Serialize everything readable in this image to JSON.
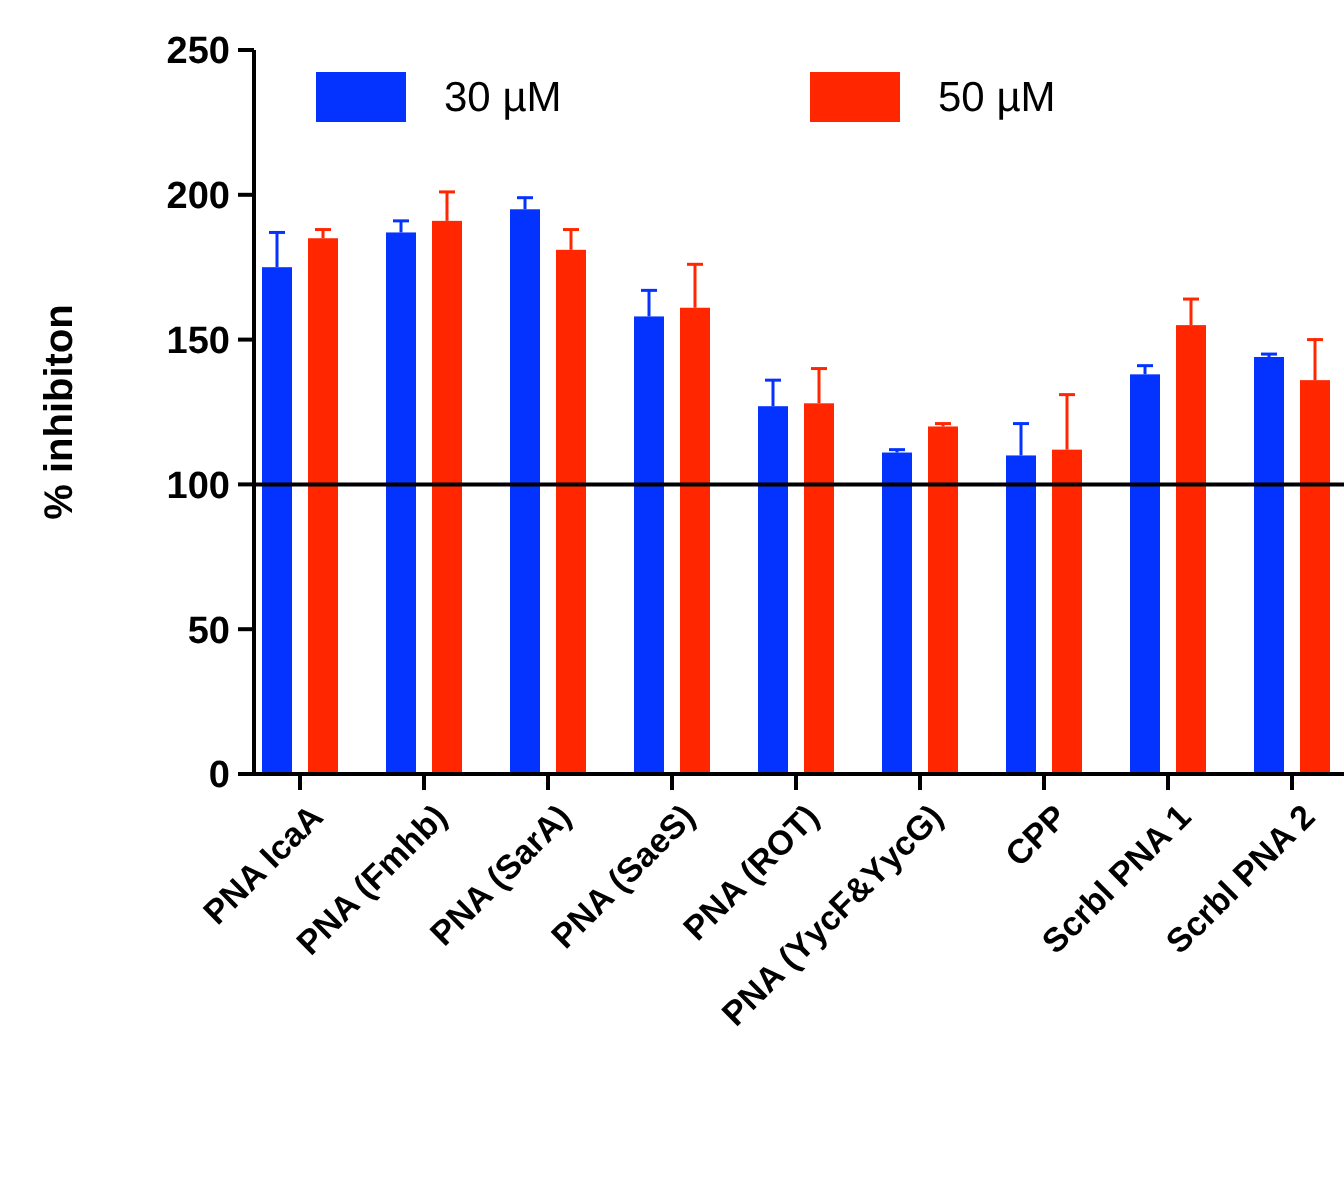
{
  "chart_data": {
    "type": "bar",
    "ylabel": "% inhibiton",
    "categories": [
      "PNA IcaA",
      "PNA (Fmhb)",
      "PNA (SarA)",
      "PNA (SaeS)",
      "PNA (ROT)",
      "PNA (YycF&YycG)",
      "CPP",
      "Scrbl PNA 1",
      "Scrbl PNA 2"
    ],
    "series": [
      {
        "name": "30 µM",
        "color": "#0433ff",
        "values": [
          175,
          187,
          195,
          158,
          127,
          111,
          110,
          138,
          144
        ],
        "errors": [
          [
            175,
            187
          ],
          [
            187,
            191
          ],
          [
            195,
            199
          ],
          [
            158,
            167
          ],
          [
            127,
            136
          ],
          [
            111,
            112
          ],
          [
            110,
            121
          ],
          [
            138,
            141
          ],
          [
            144,
            145
          ]
        ]
      },
      {
        "name": "50 µM",
        "color": "#ff2600",
        "values": [
          185,
          191,
          181,
          161,
          128,
          120,
          112,
          155,
          136
        ],
        "errors": [
          [
            185,
            188
          ],
          [
            191,
            201
          ],
          [
            181,
            188
          ],
          [
            161,
            176
          ],
          [
            128,
            140
          ],
          [
            120,
            121
          ],
          [
            112,
            131
          ],
          [
            155,
            164
          ],
          [
            136,
            150
          ]
        ]
      }
    ],
    "ylim": [
      0,
      250
    ],
    "yticks": [
      0,
      50,
      100,
      150,
      200,
      250
    ],
    "ref_lines": [
      {
        "axis": "y",
        "value": 100,
        "color": "#000000"
      }
    ],
    "legend": "top",
    "grid": false
  }
}
